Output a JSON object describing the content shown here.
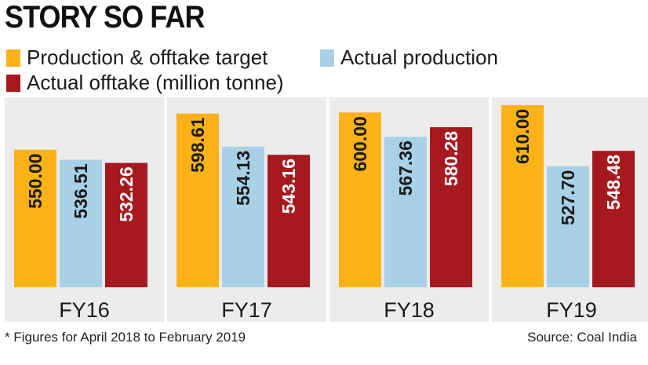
{
  "header": {
    "title": "STORY SO FAR"
  },
  "legend": [
    {
      "label": "Production & offtake target",
      "color": "#FBB217"
    },
    {
      "label": "Actual production",
      "color": "#A8D0E6"
    },
    {
      "label": "Actual offtake (million tonne)",
      "color": "#A6191E"
    }
  ],
  "footnote": "* Figures for April 2018 to February 2019",
  "source": "Source: Coal India",
  "chart_data": {
    "type": "bar",
    "title": "STORY SO FAR",
    "categories": [
      "FY16",
      "FY17",
      "FY18",
      "FY19"
    ],
    "series": [
      {
        "name": "Production & offtake target",
        "color": "#FBB217",
        "values": [
          550.0,
          598.61,
          600.0,
          610.0
        ],
        "labels": [
          "550.00",
          "598.61",
          "600.00",
          "610.00"
        ]
      },
      {
        "name": "Actual production",
        "color": "#A8D0E6",
        "values": [
          536.51,
          554.13,
          567.36,
          527.7
        ],
        "labels": [
          "536.51",
          "554.13",
          "567.36",
          "527.70"
        ]
      },
      {
        "name": "Actual offtake (million tonne)",
        "color": "#A6191E",
        "values": [
          532.26,
          543.16,
          580.28,
          548.48
        ],
        "labels": [
          "532.26",
          "543.16",
          "580.28",
          "548.48"
        ]
      }
    ],
    "ylabel": "million tonne",
    "xlabel": "",
    "grid": false
  }
}
